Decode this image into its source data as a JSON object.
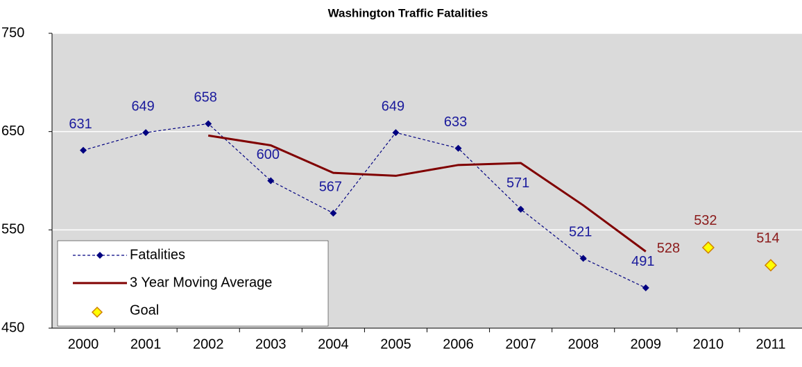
{
  "chart_data": {
    "type": "line",
    "title": "Washington Traffic Fatalities",
    "categories": [
      "2000",
      "2001",
      "2002",
      "2003",
      "2004",
      "2005",
      "2006",
      "2007",
      "2008",
      "2009",
      "2010",
      "2011"
    ],
    "series": [
      {
        "name": "Fatalities",
        "color": "#000080",
        "style": "dashed-marker",
        "labels": "all",
        "values": [
          631,
          649,
          658,
          600,
          567,
          649,
          633,
          571,
          521,
          491,
          null,
          null
        ]
      },
      {
        "name": "3 Year Moving Average",
        "color": "#800000",
        "style": "solid",
        "labels": "last",
        "values": [
          null,
          null,
          646,
          636,
          608,
          605,
          616,
          618,
          575,
          528,
          null,
          null
        ]
      },
      {
        "name": "Goal",
        "color": "#ffff00",
        "style": "marker",
        "labels": "all",
        "values": [
          null,
          null,
          null,
          null,
          null,
          null,
          null,
          null,
          null,
          null,
          532,
          514
        ]
      }
    ],
    "ylim": [
      450,
      750
    ],
    "yticks": [
      450,
      550,
      650,
      750
    ],
    "grid": true,
    "legend": "lower left"
  }
}
